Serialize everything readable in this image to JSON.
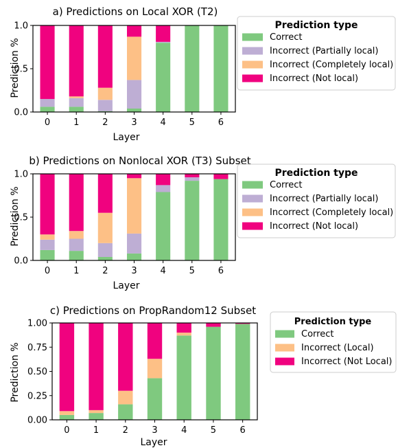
{
  "colors": {
    "correct": "#7fc97f",
    "partially_local": "#beaed4",
    "completely_local": "#fdc086",
    "not_local": "#f0027f"
  },
  "chart_data": [
    {
      "type": "bar",
      "stacked": true,
      "title": "a) Predictions on Local XOR (T2)",
      "xlabel": "Layer",
      "ylabel": "Prediction %",
      "categories": [
        "0",
        "1",
        "2",
        "3",
        "4",
        "5",
        "6"
      ],
      "ylim": [
        0,
        1
      ],
      "yticks": [
        "0.0",
        "0.5",
        "1.0"
      ],
      "legend_title": "Prediction type",
      "legend_position": "right",
      "series": [
        {
          "name": "Correct",
          "color_key": "correct",
          "values": [
            0.06,
            0.06,
            0.01,
            0.04,
            0.8,
            1.0,
            1.0
          ]
        },
        {
          "name": "Incorrect (Partially local)",
          "color_key": "partially_local",
          "values": [
            0.09,
            0.1,
            0.13,
            0.33,
            0.01,
            0.0,
            0.0
          ]
        },
        {
          "name": "Incorrect (Completely local)",
          "color_key": "completely_local",
          "values": [
            0.0,
            0.02,
            0.14,
            0.5,
            0.0,
            0.0,
            0.0
          ]
        },
        {
          "name": "Incorrect (Not local)",
          "color_key": "not_local",
          "values": [
            0.85,
            0.82,
            0.72,
            0.13,
            0.19,
            0.0,
            0.0
          ]
        }
      ]
    },
    {
      "type": "bar",
      "stacked": true,
      "title": "b) Predictions on  Nonlocal XOR (T3) Subset",
      "xlabel": "Layer",
      "ylabel": "Prediction %",
      "categories": [
        "0",
        "1",
        "2",
        "3",
        "4",
        "5",
        "6"
      ],
      "ylim": [
        0,
        1
      ],
      "yticks": [
        "0.0",
        "0.5",
        "1.0"
      ],
      "legend_title": "Prediction type",
      "legend_position": "right",
      "series": [
        {
          "name": "Correct",
          "color_key": "correct",
          "values": [
            0.12,
            0.11,
            0.04,
            0.08,
            0.79,
            0.92,
            0.94
          ]
        },
        {
          "name": "Incorrect (Partially local)",
          "color_key": "partially_local",
          "values": [
            0.12,
            0.14,
            0.16,
            0.23,
            0.08,
            0.04,
            0.0
          ]
        },
        {
          "name": "Incorrect (Completely local)",
          "color_key": "completely_local",
          "values": [
            0.06,
            0.09,
            0.35,
            0.64,
            0.0,
            0.0,
            0.0
          ]
        },
        {
          "name": "Incorrect (Not local)",
          "color_key": "not_local",
          "values": [
            0.7,
            0.66,
            0.45,
            0.05,
            0.13,
            0.04,
            0.06
          ]
        }
      ]
    },
    {
      "type": "bar",
      "stacked": true,
      "title": "c) Predictions on PropRandom12 Subset",
      "xlabel": "Layer",
      "ylabel": "Prediction %",
      "categories": [
        "0",
        "1",
        "2",
        "3",
        "4",
        "5",
        "6"
      ],
      "ylim": [
        0,
        1
      ],
      "yticks": [
        "0.00",
        "0.25",
        "0.50",
        "0.75",
        "1.00"
      ],
      "legend_title": "Prediction type",
      "legend_position": "right",
      "series": [
        {
          "name": "Correct",
          "color_key": "correct",
          "values": [
            0.05,
            0.07,
            0.16,
            0.43,
            0.87,
            0.96,
            0.99
          ]
        },
        {
          "name": "Incorrect (Local)",
          "color_key": "completely_local",
          "values": [
            0.04,
            0.03,
            0.14,
            0.2,
            0.03,
            0.0,
            0.0
          ]
        },
        {
          "name": "Incorrect (Not Local)",
          "color_key": "not_local",
          "values": [
            0.91,
            0.9,
            0.7,
            0.37,
            0.1,
            0.04,
            0.01
          ]
        }
      ]
    }
  ]
}
